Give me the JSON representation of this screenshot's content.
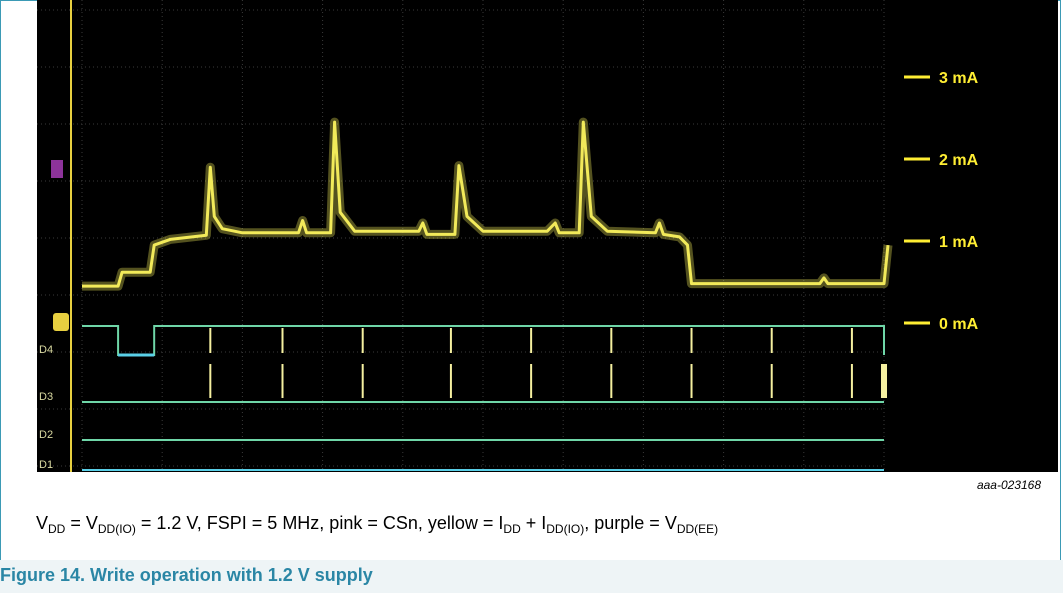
{
  "figure": {
    "id": "aaa-023168",
    "caption_parts": [
      {
        "t": "V"
      },
      {
        "sub": "DD"
      },
      {
        "t": " = V"
      },
      {
        "sub": "DD(IO)"
      },
      {
        "t": " = 1.2 V, FSPI = 5 MHz, pink = CSn, yellow = I"
      },
      {
        "sub": "DD"
      },
      {
        "t": " + I"
      },
      {
        "sub": "DD(IO)"
      },
      {
        "t": ", purple = V"
      },
      {
        "sub": "DD(EE)"
      }
    ],
    "title": "Figure 14.  Write operation with 1.2 V supply"
  },
  "colors": {
    "current_trace": "#f2ea5a",
    "digital_trace": "#6fd6a8",
    "digital_low": "#5ad0e8",
    "marker": "#ffee33",
    "grid": "#3a3a3a",
    "border": "#3b9ab5",
    "title": "#2a86a5"
  },
  "chart_data": {
    "type": "line",
    "title": "",
    "y_axis": {
      "unit": "mA",
      "ylim": [
        -0.3,
        3.6
      ],
      "tick_labels": [
        {
          "value": 3,
          "label": "3 mA"
        },
        {
          "value": 2,
          "label": "2 mA"
        },
        {
          "value": 1,
          "label": "1 mA"
        },
        {
          "value": 0,
          "label": "0 mA"
        }
      ]
    },
    "x_axis": {
      "divisions": 10,
      "xlim": [
        0,
        10
      ],
      "labels": []
    },
    "series": [
      {
        "points": [
          [
            0.0,
            0.45
          ],
          [
            0.45,
            0.45
          ],
          [
            0.5,
            0.62
          ],
          [
            0.85,
            0.62
          ],
          [
            0.9,
            0.95
          ],
          [
            1.1,
            1.02
          ],
          [
            1.55,
            1.07
          ],
          [
            1.6,
            1.9
          ],
          [
            1.65,
            1.3
          ],
          [
            1.75,
            1.15
          ],
          [
            2.0,
            1.1
          ],
          [
            2.7,
            1.1
          ],
          [
            2.75,
            1.25
          ],
          [
            2.8,
            1.1
          ],
          [
            3.1,
            1.1
          ],
          [
            3.15,
            2.45
          ],
          [
            3.22,
            1.35
          ],
          [
            3.4,
            1.12
          ],
          [
            4.2,
            1.12
          ],
          [
            4.25,
            1.22
          ],
          [
            4.3,
            1.08
          ],
          [
            4.65,
            1.08
          ],
          [
            4.7,
            1.92
          ],
          [
            4.8,
            1.3
          ],
          [
            5.0,
            1.12
          ],
          [
            5.8,
            1.12
          ],
          [
            5.9,
            1.22
          ],
          [
            5.95,
            1.1
          ],
          [
            6.2,
            1.1
          ],
          [
            6.25,
            2.45
          ],
          [
            6.35,
            1.3
          ],
          [
            6.55,
            1.12
          ],
          [
            7.15,
            1.1
          ],
          [
            7.2,
            1.22
          ],
          [
            7.25,
            1.08
          ],
          [
            7.45,
            1.05
          ],
          [
            7.55,
            0.95
          ],
          [
            7.6,
            0.48
          ],
          [
            9.2,
            0.48
          ],
          [
            9.25,
            0.55
          ],
          [
            9.3,
            0.48
          ],
          [
            10.0,
            0.48
          ],
          [
            10.05,
            0.95
          ]
        ]
      }
    ],
    "digital_channels": [
      {
        "name": "D4",
        "idle": "high",
        "low_interval": [
          0.45,
          0.9
        ],
        "pulses": [
          1.6,
          2.5,
          3.5,
          4.6,
          5.6,
          6.6,
          7.6,
          8.6,
          9.6
        ]
      },
      {
        "name": "D3",
        "idle": "low",
        "pulses": [
          1.6,
          2.5,
          3.5,
          4.6,
          5.6,
          6.6,
          7.6,
          8.6,
          9.6,
          10.0
        ]
      },
      {
        "name": "D2",
        "idle": "low",
        "pulses": []
      },
      {
        "name": "D1",
        "idle": "low",
        "pulses": []
      }
    ],
    "grid": true,
    "legend": "none"
  }
}
